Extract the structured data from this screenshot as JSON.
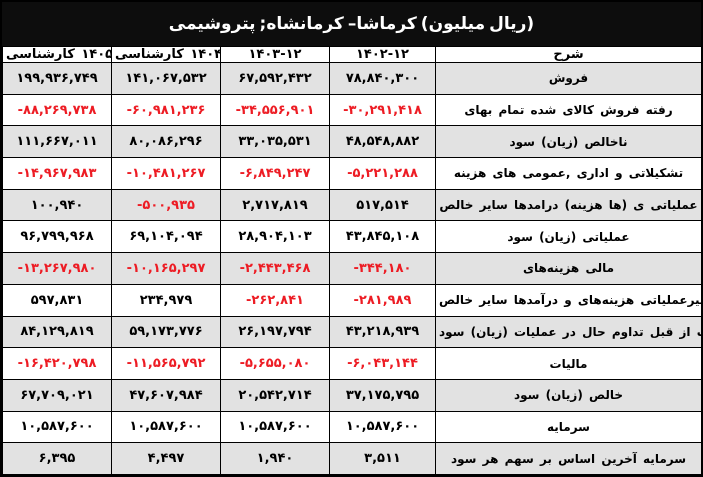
{
  "title": {
    "tokens": [
      "پتروشیمی",
      ";کرمانشاه",
      "–کرماشا",
      "(میلیون",
      "ریال)"
    ]
  },
  "colors": {
    "negative": "#ed1c24",
    "stripe": "#e2e2e2",
    "title_bg": "#0d0d0d",
    "border": "#000000"
  },
  "table": {
    "header": {
      "desc_label_tokens": [
        "شرح"
      ],
      "columns_ltr": [
        {
          "kind": "tokens",
          "tokens": [
            "کارشناسی",
            "۱۴۰۵"
          ]
        },
        {
          "kind": "tokens",
          "tokens": [
            "کارشناسی",
            "۱۴۰۴"
          ]
        },
        {
          "kind": "num",
          "text": "۱۴۰۳-۱۲"
        },
        {
          "kind": "num",
          "text": "۱۴۰۲-۱۲"
        }
      ]
    },
    "rows": [
      {
        "desc_tokens": [
          "فروش"
        ],
        "values": [
          "۷۸,۸۴۰,۳۰۰",
          "۶۷,۵۹۲,۴۳۲",
          "۱۴۱,۰۶۷,۵۳۲",
          "۱۹۹,۹۳۶,۷۴۹"
        ]
      },
      {
        "desc_tokens": [
          "بهای",
          "تمام",
          "شده",
          "کالای",
          "فروش",
          "رفته"
        ],
        "values": [
          "-۳۰,۲۹۱,۴۱۸",
          "-۳۴,۵۵۶,۹۰۱",
          "-۶۰,۹۸۱,۲۳۶",
          "-۸۸,۲۶۹,۷۳۸"
        ]
      },
      {
        "desc_tokens": [
          "سود",
          "(زیان)",
          "ناخالص"
        ],
        "values": [
          "۴۸,۵۴۸,۸۸۲",
          "۳۳,۰۳۵,۵۳۱",
          "۸۰,۰۸۶,۲۹۶",
          "۱۱۱,۶۶۷,۰۱۱"
        ]
      },
      {
        "desc_tokens": [
          "هزینه",
          "های",
          "عمومی,",
          "اداری",
          "و",
          "تشکیلاتی"
        ],
        "values": [
          "-۵,۲۲۱,۲۸۸",
          "-۶,۸۴۹,۲۴۷",
          "-۱۰,۴۸۱,۲۶۷",
          "-۱۴,۹۶۷,۹۸۳"
        ]
      },
      {
        "desc_tokens": [
          "خالص",
          "سایر",
          "درامدها",
          "(هزینه",
          "ها)",
          "ی",
          "عملیاتی"
        ],
        "values": [
          "۵۱۷,۵۱۴",
          "۲,۷۱۷,۸۱۹",
          "-۵۰۰,۹۳۵",
          "۱۰۰,۹۴۰"
        ]
      },
      {
        "desc_tokens": [
          "سود",
          "(زیان)",
          "عملیاتی"
        ],
        "values": [
          "۴۳,۸۴۵,۱۰۸",
          "۲۸,۹۰۴,۱۰۳",
          "۶۹,۱۰۴,۰۹۴",
          "۹۶,۷۹۹,۹۶۸"
        ]
      },
      {
        "desc_tokens": [
          "هزینه‌های",
          "مالی"
        ],
        "values": [
          "-۳۴۴,۱۸۰",
          "-۲,۴۴۳,۴۶۸",
          "-۱۰,۱۶۵,۲۹۷",
          "-۱۳,۲۶۷,۹۸۰"
        ]
      },
      {
        "desc_tokens": [
          "خالص",
          "سایر",
          "درآمدها",
          "و",
          "هزینه‌های",
          "غیرعملیاتی"
        ],
        "values": [
          "-۲۸۱,۹۸۹",
          "-۲۶۲,۸۴۱",
          "۲۳۴,۹۷۹",
          "۵۹۷,۸۳۱"
        ]
      },
      {
        "desc_tokens": [
          "سود",
          "(زیان)",
          "عملیات",
          "در",
          "حال",
          "تداوم",
          "قبل",
          "از",
          "مالیات"
        ],
        "values": [
          "۴۳,۲۱۸,۹۳۹",
          "۲۶,۱۹۷,۷۹۴",
          "۵۹,۱۷۳,۷۷۶",
          "۸۴,۱۲۹,۸۱۹"
        ]
      },
      {
        "desc_tokens": [
          "مالیات"
        ],
        "values": [
          "-۶,۰۴۳,۱۴۴",
          "-۵,۶۵۵,۰۸۰",
          "-۱۱,۵۶۵,۷۹۲",
          "-۱۶,۴۲۰,۷۹۸"
        ]
      },
      {
        "desc_tokens": [
          "سود",
          "(زیان)",
          "خالص"
        ],
        "values": [
          "۳۷,۱۷۵,۷۹۵",
          "۲۰,۵۴۲,۷۱۴",
          "۴۷,۶۰۷,۹۸۴",
          "۶۷,۷۰۹,۰۲۱"
        ]
      },
      {
        "desc_tokens": [
          "سرمایه"
        ],
        "values": [
          "۱۰,۵۸۷,۶۰۰",
          "۱۰,۵۸۷,۶۰۰",
          "۱۰,۵۸۷,۶۰۰",
          "۱۰,۵۸۷,۶۰۰"
        ]
      },
      {
        "desc_tokens": [
          "سود",
          "هر",
          "سهم",
          "بر",
          "اساس",
          "آخرین",
          "سرمایه"
        ],
        "values": [
          "۳,۵۱۱",
          "۱,۹۴۰",
          "۴,۴۹۷",
          "۶,۳۹۵"
        ]
      }
    ]
  },
  "chart_data": {
    "type": "table",
    "title": "پتروشیمی کرمانشاه - کرماشا (میلیون ریال)",
    "categories": [
      "فروش",
      "بهای تمام شده کالای فروش رفته",
      "سود (زیان) ناخالص",
      "هزینه های عمومی, اداری و تشکیلاتی",
      "خالص سایر درامدها (هزینه ها) ی عملیاتی",
      "سود (زیان) عملیاتی",
      "هزینه‌های مالی",
      "خالص سایر درآمدها و هزینه‌های غیرعملیاتی",
      "سود (زیان) عملیات در حال تداوم قبل از مالیات",
      "مالیات",
      "سود (زیان) خالص",
      "سرمایه",
      "سود هر سهم بر اساس آخرین سرمایه"
    ],
    "series": [
      {
        "name": "۱۴۰۲-۱۲",
        "values": [
          78840300,
          -30291418,
          48548882,
          -5221288,
          517514,
          43845108,
          -344180,
          -281989,
          43218939,
          -6043144,
          37175795,
          10587600,
          3511
        ]
      },
      {
        "name": "۱۴۰۳-۱۲",
        "values": [
          67592432,
          -34556901,
          33035531,
          -6849247,
          2717819,
          28904103,
          -2443468,
          -262841,
          26197794,
          -5655080,
          20542714,
          10587600,
          1940
        ]
      },
      {
        "name": "کارشناسی ۱۴۰۴",
        "values": [
          141067532,
          -60981236,
          80086296,
          -10481267,
          -500935,
          69104094,
          -10165297,
          234979,
          59173776,
          -11565792,
          47607984,
          10587600,
          4497
        ]
      },
      {
        "name": "کارشناسی ۱۴۰۵",
        "values": [
          199936749,
          -88269738,
          111667011,
          -14967983,
          100940,
          96799968,
          -13267980,
          597831,
          84129819,
          -16420798,
          67709021,
          10587600,
          6395
        ]
      }
    ]
  }
}
